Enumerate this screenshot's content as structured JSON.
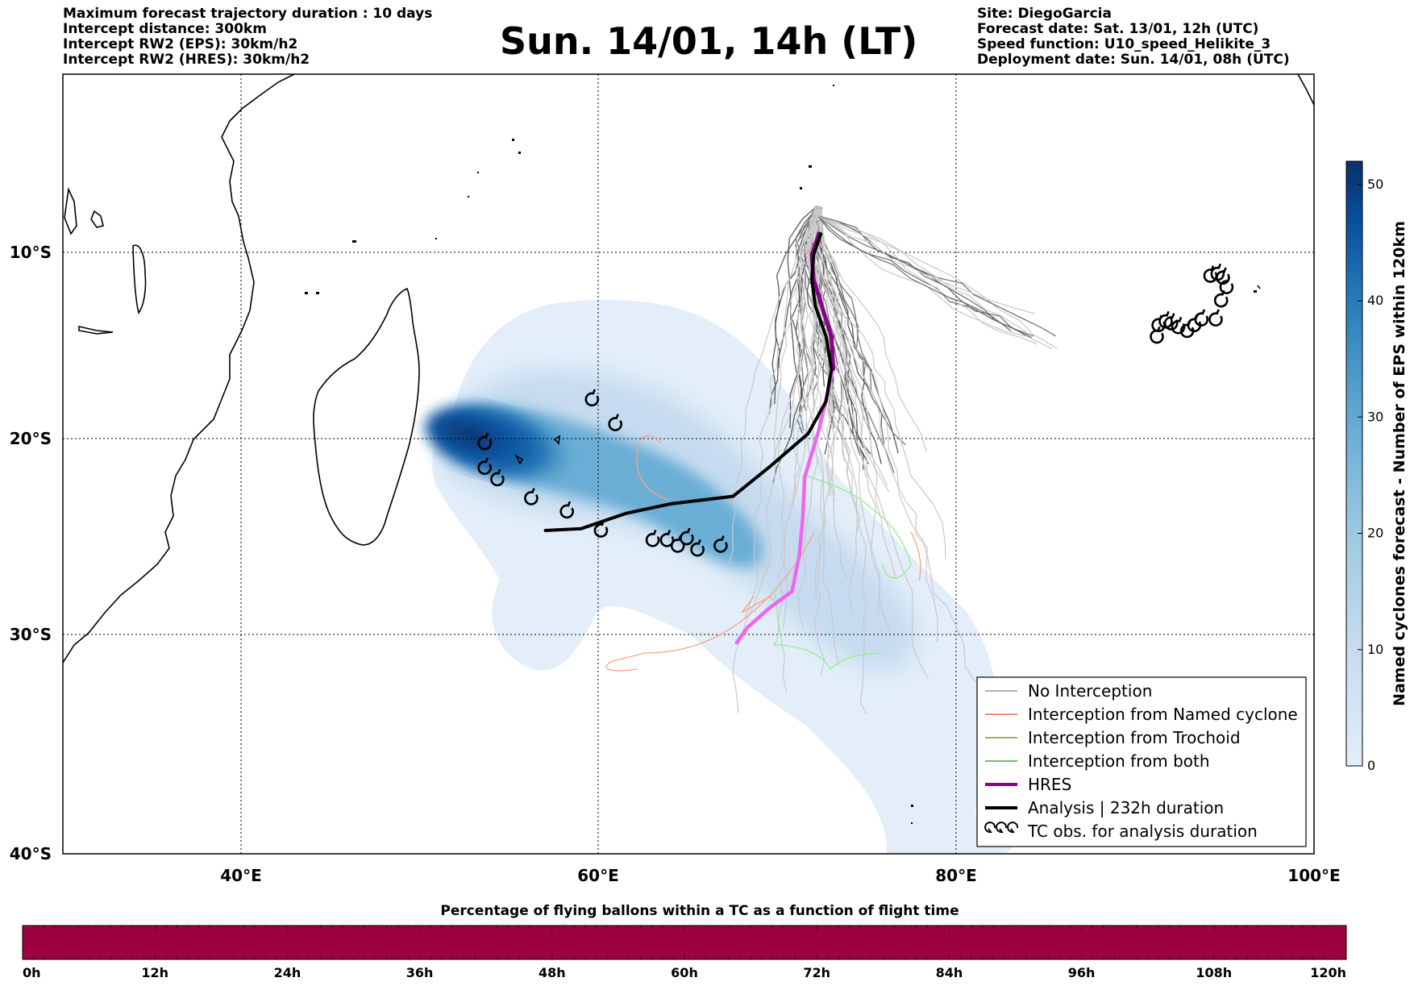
{
  "title": "Sun. 14/01, 14h (LT)",
  "header_left": [
    "Maximum forecast trajectory duration : 10 days",
    "Intercept distance: 300km",
    "Intercept RW2 (EPS):  30km/h2",
    "Intercept RW2 (HRES): 30km/h2"
  ],
  "header_right": [
    "Site: DiegoGarcia",
    "Forecast date: Sat. 13/01, 12h (UTC)",
    "Speed function: U10_speed_Helikite_3",
    "Deployment date: Sun. 14/01, 08h (UTC)"
  ],
  "map": {
    "lon_range": [
      30,
      100
    ],
    "lat_range": [
      -40,
      1
    ],
    "x_ticks": [
      "40°E",
      "60°E",
      "80°E",
      "100°E"
    ],
    "y_ticks": [
      "10°S",
      "20°S",
      "30°S",
      "40°S"
    ],
    "grid": "dotted"
  },
  "colorbar": {
    "label": "Named cyclones forecast - Number of EPS within 120km",
    "ticks": [
      "0",
      "10",
      "20",
      "30",
      "40",
      "50"
    ],
    "colors": [
      "#e3eef9",
      "#c6dbef",
      "#9ecae1",
      "#6baed6",
      "#4292c6",
      "#2171b5",
      "#08519c",
      "#08306b"
    ]
  },
  "legend": [
    {
      "label": "No Interception",
      "color": "#808080",
      "kind": "line"
    },
    {
      "label": "Interception from Named cyclone",
      "color": "#e8511c",
      "kind": "line"
    },
    {
      "label": "Interception from Trochoid",
      "color": "#7a7a10",
      "kind": "line"
    },
    {
      "label": "Interception from both",
      "color": "#1a9a1a",
      "kind": "line"
    },
    {
      "label": "HRES",
      "color": "#8b008b",
      "kind": "thick"
    },
    {
      "label": "Analysis | 232h duration",
      "color": "#000000",
      "kind": "thick"
    },
    {
      "label": "TC obs. for analysis duration",
      "color": "#000000",
      "kind": "cyclone"
    }
  ],
  "analysis_track": [
    [
      72.4,
      -7.4
    ],
    [
      72.0,
      -8.5
    ],
    [
      71.9,
      -9.8
    ],
    [
      72.1,
      -11.2
    ],
    [
      72.7,
      -12.8
    ],
    [
      73.0,
      -14.5
    ],
    [
      72.7,
      -16.2
    ],
    [
      71.7,
      -17.9
    ],
    [
      69.6,
      -19.6
    ],
    [
      67.5,
      -21.2
    ],
    [
      64.0,
      -21.6
    ],
    [
      61.5,
      -22.1
    ],
    [
      59.0,
      -22.9
    ],
    [
      57.0,
      -23.0
    ]
  ],
  "hres_track": [
    [
      72.3,
      -7.4
    ],
    [
      71.9,
      -8.5
    ],
    [
      72.0,
      -9.8
    ],
    [
      72.5,
      -11.3
    ],
    [
      73.0,
      -12.8
    ],
    [
      73.1,
      -14.5
    ],
    [
      72.3,
      -17.7
    ],
    [
      71.5,
      -20.2
    ],
    [
      71.4,
      -22.3
    ],
    [
      71.2,
      -24.3
    ],
    [
      70.8,
      -26.2
    ],
    [
      69.5,
      -27.1
    ],
    [
      68.3,
      -28.1
    ],
    [
      67.7,
      -28.9
    ]
  ],
  "tc_obs": [
    [
      53.6,
      -18.4
    ],
    [
      53.6,
      -19.7
    ],
    [
      54.3,
      -20.3
    ],
    [
      56.2,
      -21.3
    ],
    [
      58.2,
      -22.0
    ],
    [
      59.6,
      -16.1
    ],
    [
      60.9,
      -17.4
    ],
    [
      60.1,
      -23.0
    ],
    [
      63.0,
      -23.5
    ],
    [
      63.8,
      -23.5
    ],
    [
      64.4,
      -23.8
    ],
    [
      64.9,
      -23.4
    ],
    [
      65.5,
      -24.0
    ],
    [
      66.8,
      -23.8
    ],
    [
      91.3,
      -12.2
    ],
    [
      91.7,
      -12.0
    ],
    [
      92.0,
      -12.1
    ],
    [
      92.4,
      -12.3
    ],
    [
      92.9,
      -12.5
    ],
    [
      93.3,
      -12.2
    ],
    [
      93.7,
      -11.9
    ],
    [
      94.2,
      -9.6
    ],
    [
      94.6,
      -9.5
    ],
    [
      94.9,
      -9.7
    ],
    [
      95.1,
      -10.2
    ],
    [
      94.8,
      -10.9
    ],
    [
      91.2,
      -12.8
    ],
    [
      94.5,
      -11.9
    ]
  ],
  "bottom_bar": {
    "title": "Percentage of flying ballons within a TC as a function of flight time",
    "ticks": [
      "0h",
      "12h",
      "24h",
      "36h",
      "48h",
      "60h",
      "72h",
      "84h",
      "96h",
      "108h",
      "120h"
    ],
    "color": "#9e0142",
    "percent_values": [
      100,
      100,
      100,
      100,
      100,
      100,
      100,
      100,
      100,
      100
    ]
  }
}
